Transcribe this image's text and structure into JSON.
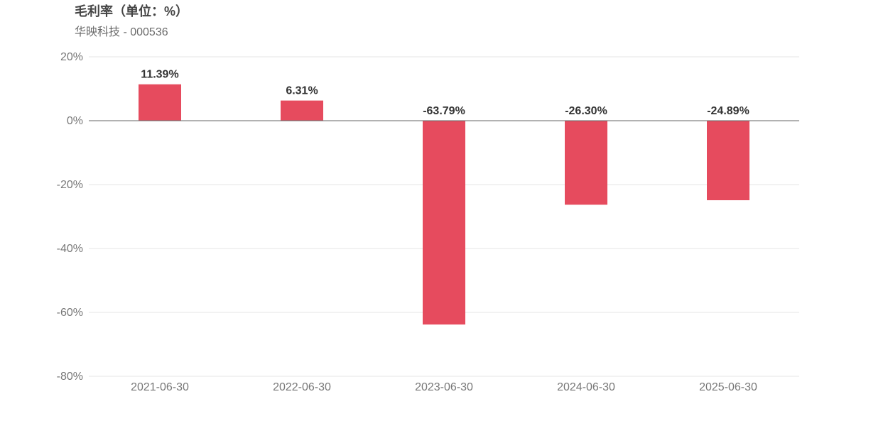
{
  "chart_data": {
    "type": "bar",
    "title": "毛利率（单位：%）",
    "subtitle": "华映科技 - 000536",
    "categories": [
      "2021-06-30",
      "2022-06-30",
      "2023-06-30",
      "2024-06-30",
      "2025-06-30"
    ],
    "values": [
      11.39,
      6.31,
      -63.79,
      -26.3,
      -24.89
    ],
    "data_labels": [
      "11.39%",
      "6.31%",
      "-63.79%",
      "-26.30%",
      "-24.89%"
    ],
    "ylim": [
      -80,
      20
    ],
    "yticks": [
      20,
      0,
      -20,
      -40,
      -60,
      -80
    ],
    "ytick_labels": [
      "20%",
      "0%",
      "-20%",
      "-40%",
      "-60%",
      "-80%"
    ],
    "grid": true,
    "bar_color": "#e64b5e"
  }
}
